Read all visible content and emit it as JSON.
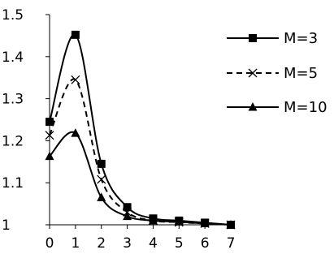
{
  "chart_data": {
    "type": "line",
    "x": [
      0,
      1,
      2,
      3,
      4,
      5,
      6,
      7
    ],
    "xlim": [
      0,
      7
    ],
    "ylim": [
      1,
      1.5
    ],
    "x_ticks": [
      "0",
      "1",
      "2",
      "3",
      "4",
      "5",
      "6",
      "7"
    ],
    "y_ticks": [
      "1",
      "1.1",
      "1.2",
      "1.3",
      "1.4",
      "1.5"
    ],
    "grid": false,
    "legend_position": "right",
    "series": [
      {
        "name": "M=3",
        "values": [
          1.245,
          1.452,
          1.145,
          1.042,
          1.015,
          1.01,
          1.005,
          1.0
        ],
        "marker": "square",
        "line_style": "solid",
        "color": "#000000"
      },
      {
        "name": "M=5",
        "values": [
          1.213,
          1.345,
          1.108,
          1.03,
          1.01,
          1.006,
          1.003,
          1.0
        ],
        "marker": "x",
        "line_style": "dashed",
        "color": "#000000"
      },
      {
        "name": "M=10",
        "values": [
          1.163,
          1.218,
          1.065,
          1.02,
          1.01,
          1.007,
          1.003,
          1.0
        ],
        "marker": "triangle",
        "line_style": "solid",
        "color": "#000000"
      }
    ]
  }
}
